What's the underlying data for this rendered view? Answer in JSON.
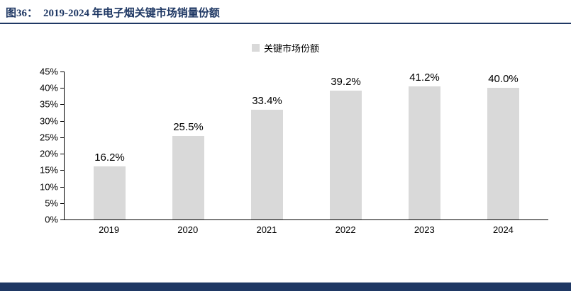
{
  "header": {
    "figure_label": "图36：",
    "title": "2019-2024 年电子烟关键市场销量份额"
  },
  "legend": {
    "label": "关键市场份额"
  },
  "chart_data": {
    "type": "bar",
    "categories": [
      "2019",
      "2020",
      "2021",
      "2022",
      "2023",
      "2024"
    ],
    "values": [
      16.2,
      25.5,
      33.4,
      39.2,
      41.2,
      40.0
    ],
    "value_labels": [
      "16.2%",
      "25.5%",
      "33.4%",
      "39.2%",
      "41.2%",
      "40.0%"
    ],
    "title": "2019-2024 年电子烟关键市场销量份额",
    "xlabel": "",
    "ylabel": "",
    "ylim": [
      0,
      45
    ],
    "ytick_step": 5,
    "ytick_labels": [
      "0%",
      "5%",
      "10%",
      "15%",
      "20%",
      "25%",
      "30%",
      "35%",
      "40%",
      "45%"
    ],
    "legend_entries": [
      "关键市场份额"
    ],
    "legend_position": "top",
    "grid": false,
    "bar_color": "#d9d9d9"
  },
  "colors": {
    "accent_navy": "#1f3864",
    "bar_fill": "#d9d9d9",
    "axis": "#000000"
  }
}
